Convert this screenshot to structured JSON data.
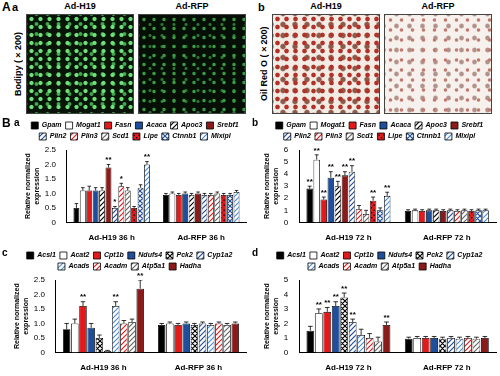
{
  "panel_A": {
    "label": "A",
    "image_panels": [
      {
        "panel": "a",
        "stain": "Bodipy (×200)",
        "conditions": [
          "Ad-H19",
          "Ad-RFP"
        ]
      },
      {
        "panel": "b",
        "stain": "Oil Red O (×200)",
        "conditions": [
          "Ad-H19",
          "Ad-RFP"
        ]
      }
    ]
  },
  "panel_B": {
    "label": "B"
  },
  "chart_data": [
    {
      "type": "bar",
      "panel": "a",
      "y_label": "Relative normalized expression",
      "categories": [
        "Ad-H19 36 h",
        "Ad-RFP 36 h"
      ],
      "ylim": [
        0,
        2.5
      ],
      "yticks": [
        0,
        0.5,
        {
          "value": 1,
          "label": "1.0"
        },
        1.5,
        {
          "value": 2,
          "label": "2.0"
        },
        2.5
      ],
      "grid": false,
      "legend": "top",
      "series": [
        {
          "name": "Gpam",
          "color": "#000000",
          "line_style": "solid",
          "values": [
            0.5,
            0.95
          ],
          "errors": [
            0.15,
            0.05
          ],
          "significance": [
            null,
            null
          ]
        },
        {
          "name": "Mogat1",
          "color": "#ffffff",
          "line_style": "solid",
          "values": [
            1.1,
            1.0
          ],
          "errors": [
            0.1,
            0.05
          ],
          "significance": [
            null,
            null
          ]
        },
        {
          "name": "Fasn",
          "color": "#e31a1c",
          "line_style": "solid",
          "values": [
            1.1,
            0.95
          ],
          "errors": [
            0.15,
            0.05
          ],
          "significance": [
            null,
            null
          ]
        },
        {
          "name": "Acaca",
          "color": "#1f4e9c",
          "line_style": "solid",
          "values": [
            1.1,
            1.0
          ],
          "errors": [
            0.1,
            0.05
          ],
          "significance": [
            null,
            null
          ]
        },
        {
          "name": "Apoc3",
          "color": "#000000",
          "line_style": "hatched",
          "values": [
            1.1,
            0.95
          ],
          "errors": [
            0.1,
            0.05
          ],
          "significance": [
            null,
            null
          ]
        },
        {
          "name": "Srebf1",
          "color": "#8b1a1a",
          "line_style": "solid",
          "values": [
            1.9,
            1.0
          ],
          "errors": [
            0.1,
            0.05
          ],
          "significance": [
            "**",
            null
          ]
        },
        {
          "name": "Plin2",
          "color": "#1f4e9c",
          "line_style": "hatched",
          "values": [
            0.5,
            0.95
          ],
          "errors": [
            0.05,
            0.05
          ],
          "significance": [
            "*",
            null
          ]
        },
        {
          "name": "Plin3",
          "color": "#e31a1c",
          "line_style": "hatched",
          "values": [
            1.25,
            0.95
          ],
          "errors": [
            0.1,
            0.05
          ],
          "significance": [
            "*",
            null
          ]
        },
        {
          "name": "Scd1",
          "color": "#666666",
          "line_style": "hatched",
          "values": [
            1.1,
            1.0
          ],
          "errors": [
            0.1,
            0.05
          ],
          "significance": [
            null,
            null
          ]
        },
        {
          "name": "Lipe",
          "color": "#e31a1c",
          "line_style": "dotted",
          "values": [
            0.5,
            0.95
          ],
          "errors": [
            0.05,
            0.05
          ],
          "significance": [
            null,
            null
          ]
        },
        {
          "name": "Ctnnb1",
          "color": "#1f4e9c",
          "line_style": "cross",
          "values": [
            1.2,
            0.95
          ],
          "errors": [
            0.1,
            0.05
          ],
          "significance": [
            null,
            null
          ]
        },
        {
          "name": "Mlxipl",
          "color": "#4a90d9",
          "line_style": "hatched",
          "values": [
            2.0,
            1.05
          ],
          "errors": [
            0.1,
            0.05
          ],
          "significance": [
            "**",
            null
          ]
        }
      ]
    },
    {
      "type": "bar",
      "panel": "b",
      "y_label": "Relative normalized expression",
      "categories": [
        "Ad-H19 72 h",
        "Ad-RFP 72 h"
      ],
      "ylim": [
        0,
        6
      ],
      "yticks": [
        0,
        1,
        2,
        3,
        4,
        5,
        6
      ],
      "grid": false,
      "legend": "top",
      "series": [
        {
          "name": "Gpam",
          "color": "#000000",
          "line_style": "solid",
          "values": [
            2.8,
            0.95
          ],
          "errors": [
            0.2,
            0.1
          ],
          "significance": [
            "**",
            null
          ]
        },
        {
          "name": "Mogat1",
          "color": "#ffffff",
          "line_style": "solid",
          "values": [
            5.2,
            1.0
          ],
          "errors": [
            0.4,
            0.1
          ],
          "significance": [
            "**",
            null
          ]
        },
        {
          "name": "Fasn",
          "color": "#e31a1c",
          "line_style": "solid",
          "values": [
            1.9,
            0.95
          ],
          "errors": [
            0.2,
            0.1
          ],
          "significance": [
            "**",
            null
          ]
        },
        {
          "name": "Acaca",
          "color": "#1f4e9c",
          "line_style": "solid",
          "values": [
            3.7,
            1.0
          ],
          "errors": [
            0.5,
            0.1
          ],
          "significance": [
            "**",
            null
          ]
        },
        {
          "name": "Apoc3",
          "color": "#000000",
          "line_style": "hatched",
          "values": [
            3.0,
            1.0
          ],
          "errors": [
            0.4,
            0.1
          ],
          "significance": [
            "**",
            null
          ]
        },
        {
          "name": "Srebf1",
          "color": "#8b1a1a",
          "line_style": "solid",
          "values": [
            3.9,
            0.95
          ],
          "errors": [
            0.3,
            0.1
          ],
          "significance": [
            "**",
            null
          ]
        },
        {
          "name": "Plin2",
          "color": "#1f4e9c",
          "line_style": "hatched",
          "values": [
            4.2,
            1.0
          ],
          "errors": [
            0.5,
            0.1
          ],
          "significance": [
            "**",
            null
          ]
        },
        {
          "name": "Plin3",
          "color": "#e31a1c",
          "line_style": "hatched",
          "values": [
            1.1,
            0.95
          ],
          "errors": [
            0.3,
            0.1
          ],
          "significance": [
            null,
            null
          ]
        },
        {
          "name": "Scd1",
          "color": "#666666",
          "line_style": "hatched",
          "values": [
            0.7,
            1.0
          ],
          "errors": [
            0.3,
            0.1
          ],
          "significance": [
            null,
            null
          ]
        },
        {
          "name": "Lipe",
          "color": "#e31a1c",
          "line_style": "dotted",
          "values": [
            1.8,
            0.95
          ],
          "errors": [
            0.3,
            0.1
          ],
          "significance": [
            "**",
            null
          ]
        },
        {
          "name": "Ctnnb1",
          "color": "#1f4e9c",
          "line_style": "cross",
          "values": [
            1.0,
            1.0
          ],
          "errors": [
            0.2,
            0.1
          ],
          "significance": [
            null,
            null
          ]
        },
        {
          "name": "Mlxipl",
          "color": "#4a90d9",
          "line_style": "hatched",
          "values": [
            2.2,
            1.0
          ],
          "errors": [
            0.3,
            0.1
          ],
          "significance": [
            "**",
            null
          ]
        }
      ]
    },
    {
      "type": "bar",
      "panel": "c",
      "y_label": "Relative normalized expression",
      "categories": [
        "Ad-H19 36 h",
        "Ad-RFP 36 h"
      ],
      "ylim": [
        0,
        2.5
      ],
      "yticks": [
        0,
        0.5,
        {
          "value": 1,
          "label": "1.0"
        },
        1.5,
        {
          "value": 2,
          "label": "2.0"
        },
        2.5
      ],
      "grid": false,
      "legend": "top",
      "series": [
        {
          "name": "Acsl1",
          "color": "#000000",
          "line_style": "solid",
          "values": [
            0.8,
            0.95
          ],
          "errors": [
            0.2,
            0.05
          ],
          "significance": [
            null,
            null
          ]
        },
        {
          "name": "Acat2",
          "color": "#ffffff",
          "line_style": "solid",
          "values": [
            1.0,
            1.0
          ],
          "errors": [
            0.15,
            0.05
          ],
          "significance": [
            null,
            null
          ]
        },
        {
          "name": "Cpt1b",
          "color": "#e31a1c",
          "line_style": "solid",
          "values": [
            1.6,
            0.95
          ],
          "errors": [
            0.15,
            0.05
          ],
          "significance": [
            "**",
            null
          ]
        },
        {
          "name": "Ndufs4",
          "color": "#1f4e9c",
          "line_style": "solid",
          "values": [
            0.85,
            1.0
          ],
          "errors": [
            0.15,
            0.05
          ],
          "significance": [
            null,
            null
          ]
        },
        {
          "name": "Pck2",
          "color": "#000000",
          "line_style": "cross",
          "values": [
            0.5,
            0.95
          ],
          "errors": [
            0.1,
            0.05
          ],
          "significance": [
            null,
            null
          ]
        },
        {
          "name": "Cyp1a2",
          "color": "#1f4e9c",
          "line_style": "hatched",
          "values": [
            0.05,
            1.0
          ],
          "errors": [
            0.02,
            0.05
          ],
          "significance": [
            null,
            null
          ]
        },
        {
          "name": "Acads",
          "color": "#4a90d9",
          "line_style": "hatched",
          "values": [
            1.6,
            0.95
          ],
          "errors": [
            0.15,
            0.05
          ],
          "significance": [
            "**",
            null
          ]
        },
        {
          "name": "Acadm",
          "color": "#e31a1c",
          "line_style": "hatched",
          "values": [
            1.0,
            1.0
          ],
          "errors": [
            0.1,
            0.05
          ],
          "significance": [
            null,
            null
          ]
        },
        {
          "name": "Atp5a1",
          "color": "#666666",
          "line_style": "hatched",
          "values": [
            1.05,
            0.95
          ],
          "errors": [
            0.1,
            0.05
          ],
          "significance": [
            null,
            null
          ]
        },
        {
          "name": "Hadha",
          "color": "#8b1a1a",
          "line_style": "solid",
          "values": [
            2.2,
            1.0
          ],
          "errors": [
            0.3,
            0.05
          ],
          "significance": [
            "**",
            null
          ]
        }
      ]
    },
    {
      "type": "bar",
      "panel": "d",
      "y_label": "Relative normalized expression",
      "categories": [
        "Ad-H19 72 h",
        "Ad-RFP 72 h"
      ],
      "ylim": [
        0,
        5
      ],
      "yticks": [
        0,
        1,
        2,
        3,
        4,
        5
      ],
      "grid": false,
      "legend": "top",
      "series": [
        {
          "name": "Acsl1",
          "color": "#000000",
          "line_style": "solid",
          "values": [
            1.5,
            0.95
          ],
          "errors": [
            0.3,
            0.1
          ],
          "significance": [
            null,
            null
          ]
        },
        {
          "name": "Acat2",
          "color": "#ffffff",
          "line_style": "solid",
          "values": [
            2.7,
            1.0
          ],
          "errors": [
            0.3,
            0.1
          ],
          "significance": [
            "**",
            null
          ]
        },
        {
          "name": "Cpt1b",
          "color": "#e31a1c",
          "line_style": "solid",
          "values": [
            2.8,
            1.0
          ],
          "errors": [
            0.3,
            0.1
          ],
          "significance": [
            "**",
            null
          ]
        },
        {
          "name": "Ndufs4",
          "color": "#1f4e9c",
          "line_style": "solid",
          "values": [
            3.2,
            1.0
          ],
          "errors": [
            0.3,
            0.1
          ],
          "significance": [
            "**",
            null
          ]
        },
        {
          "name": "Pck2",
          "color": "#000000",
          "line_style": "cross",
          "values": [
            3.8,
            0.95
          ],
          "errors": [
            0.3,
            0.1
          ],
          "significance": [
            "**",
            null
          ]
        },
        {
          "name": "Cyp1a2",
          "color": "#1f4e9c",
          "line_style": "hatched",
          "values": [
            2.1,
            1.0
          ],
          "errors": [
            0.2,
            0.1
          ],
          "significance": [
            "**",
            null
          ]
        },
        {
          "name": "Acads",
          "color": "#4a90d9",
          "line_style": "hatched",
          "values": [
            1.2,
            0.95
          ],
          "errors": [
            0.4,
            0.1
          ],
          "significance": [
            null,
            null
          ]
        },
        {
          "name": "Acadm",
          "color": "#e31a1c",
          "line_style": "hatched",
          "values": [
            1.0,
            1.0
          ],
          "errors": [
            0.3,
            0.1
          ],
          "significance": [
            null,
            null
          ]
        },
        {
          "name": "Atp5a1",
          "color": "#666666",
          "line_style": "hatched",
          "values": [
            0.75,
            0.95
          ],
          "errors": [
            0.3,
            0.1
          ],
          "significance": [
            null,
            null
          ]
        },
        {
          "name": "Hadha",
          "color": "#8b1a1a",
          "line_style": "solid",
          "values": [
            1.9,
            1.0
          ],
          "errors": [
            0.2,
            0.1
          ],
          "significance": [
            "**",
            null
          ]
        }
      ]
    }
  ]
}
